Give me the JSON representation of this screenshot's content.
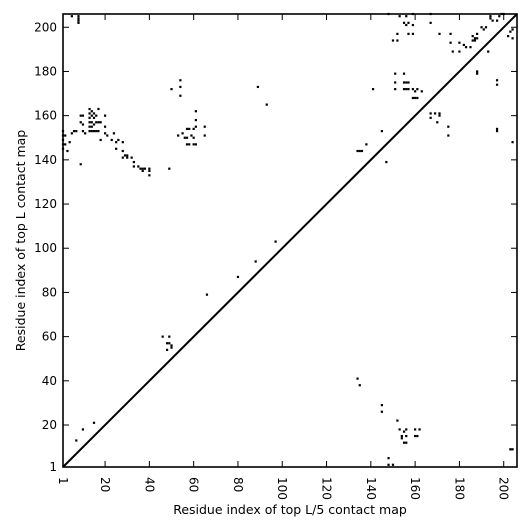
{
  "chart_data": {
    "type": "scatter",
    "xlabel": "Residue index of top L/5 contact map",
    "ylabel": "Residue index of top L contact map",
    "xlim": [
      1,
      206
    ],
    "ylim": [
      1,
      206
    ],
    "xticks": [
      1,
      20,
      40,
      60,
      80,
      100,
      120,
      140,
      160,
      180,
      200
    ],
    "yticks": [
      1,
      20,
      40,
      60,
      80,
      100,
      120,
      140,
      160,
      180,
      200
    ],
    "grid": false,
    "diagonal": [
      [
        1,
        1
      ],
      [
        206,
        206
      ]
    ],
    "upper_contacts": [
      [
        5,
        205
      ],
      [
        8,
        205
      ],
      [
        8,
        204
      ],
      [
        8,
        203
      ],
      [
        8,
        202
      ],
      [
        1,
        153
      ],
      [
        1,
        151
      ],
      [
        1,
        149
      ],
      [
        1,
        147
      ],
      [
        1,
        145
      ],
      [
        2,
        151
      ],
      [
        2,
        147
      ],
      [
        3,
        144
      ],
      [
        4,
        148
      ],
      [
        5,
        152
      ],
      [
        6,
        153
      ],
      [
        7,
        153
      ],
      [
        9,
        160
      ],
      [
        9,
        157
      ],
      [
        10,
        160
      ],
      [
        10,
        156
      ],
      [
        10,
        153
      ],
      [
        11,
        152
      ],
      [
        13,
        163
      ],
      [
        13,
        161
      ],
      [
        13,
        159
      ],
      [
        13,
        157
      ],
      [
        13,
        155
      ],
      [
        13,
        153
      ],
      [
        14,
        162
      ],
      [
        14,
        160
      ],
      [
        14,
        157
      ],
      [
        14,
        155
      ],
      [
        14,
        153
      ],
      [
        15,
        161
      ],
      [
        15,
        159
      ],
      [
        15,
        156
      ],
      [
        15,
        153
      ],
      [
        16,
        160
      ],
      [
        16,
        157
      ],
      [
        16,
        153
      ],
      [
        17,
        163
      ],
      [
        17,
        157
      ],
      [
        17,
        153
      ],
      [
        18,
        157
      ],
      [
        18,
        149
      ],
      [
        20,
        160
      ],
      [
        20,
        155
      ],
      [
        20,
        152
      ],
      [
        21,
        151
      ],
      [
        23,
        149
      ],
      [
        24,
        152
      ],
      [
        25,
        148
      ],
      [
        25,
        145
      ],
      [
        26,
        149
      ],
      [
        28,
        148
      ],
      [
        28,
        144
      ],
      [
        28,
        141
      ],
      [
        29,
        142
      ],
      [
        30,
        142
      ],
      [
        30,
        141
      ],
      [
        32,
        141
      ],
      [
        33,
        139
      ],
      [
        33,
        137
      ],
      [
        35,
        137
      ],
      [
        36,
        136
      ],
      [
        37,
        136
      ],
      [
        37,
        135
      ],
      [
        38,
        136
      ],
      [
        40,
        136
      ],
      [
        40,
        135
      ],
      [
        40,
        133
      ],
      [
        9,
        138
      ],
      [
        49,
        136
      ],
      [
        46,
        60
      ],
      [
        48,
        57
      ],
      [
        49,
        60
      ],
      [
        49,
        57
      ],
      [
        50,
        56
      ],
      [
        50,
        55
      ],
      [
        48,
        54
      ],
      [
        50,
        172
      ],
      [
        54,
        176
      ],
      [
        54,
        173
      ],
      [
        54,
        169
      ],
      [
        53,
        151
      ],
      [
        55,
        152
      ],
      [
        56,
        150
      ],
      [
        57,
        154
      ],
      [
        57,
        150
      ],
      [
        58,
        154
      ],
      [
        57,
        147
      ],
      [
        58,
        147
      ],
      [
        59,
        151
      ],
      [
        60,
        147
      ],
      [
        60,
        150
      ],
      [
        60,
        154
      ],
      [
        61,
        162
      ],
      [
        61,
        158
      ],
      [
        61,
        155
      ],
      [
        61,
        147
      ],
      [
        65,
        155
      ],
      [
        65,
        151
      ],
      [
        66,
        79
      ],
      [
        80,
        87
      ],
      [
        88,
        94
      ],
      [
        89,
        173
      ],
      [
        93,
        165
      ],
      [
        97,
        103
      ],
      [
        134,
        144
      ],
      [
        135,
        144
      ],
      [
        136,
        144
      ],
      [
        138,
        147
      ],
      [
        141,
        172
      ],
      [
        145,
        153
      ],
      [
        147,
        139
      ],
      [
        148,
        206
      ],
      [
        150,
        194
      ],
      [
        151,
        179
      ],
      [
        151,
        175
      ],
      [
        151,
        172
      ],
      [
        152,
        194
      ],
      [
        152,
        197
      ],
      [
        153,
        205
      ],
      [
        155,
        179
      ],
      [
        155,
        175
      ],
      [
        155,
        172
      ],
      [
        155,
        202
      ],
      [
        156,
        205
      ],
      [
        156,
        175
      ],
      [
        156,
        172
      ],
      [
        156,
        201
      ],
      [
        157,
        172
      ],
      [
        157,
        197
      ],
      [
        157,
        175
      ],
      [
        157,
        202
      ],
      [
        159,
        206
      ],
      [
        159,
        201
      ],
      [
        159,
        197
      ],
      [
        159,
        172
      ],
      [
        159,
        168
      ],
      [
        160,
        168
      ],
      [
        160,
        171
      ],
      [
        161,
        172
      ],
      [
        161,
        168
      ],
      [
        163,
        171
      ],
      [
        167,
        206
      ],
      [
        167,
        202
      ],
      [
        167,
        161
      ],
      [
        167,
        159
      ],
      [
        169,
        161
      ],
      [
        170,
        157
      ],
      [
        171,
        197
      ],
      [
        171,
        161
      ],
      [
        171,
        160
      ],
      [
        175,
        155
      ],
      [
        175,
        151
      ],
      [
        176,
        197
      ],
      [
        176,
        193
      ],
      [
        177,
        189
      ],
      [
        180,
        193
      ],
      [
        180,
        189
      ],
      [
        182,
        192
      ],
      [
        183,
        191
      ],
      [
        185,
        191
      ],
      [
        186,
        196
      ],
      [
        186,
        194
      ],
      [
        187,
        194
      ],
      [
        187,
        195
      ],
      [
        188,
        197
      ],
      [
        188,
        195
      ],
      [
        188,
        180
      ],
      [
        188,
        179
      ],
      [
        190,
        200
      ],
      [
        191,
        199
      ],
      [
        192,
        200
      ],
      [
        193,
        189
      ],
      [
        194,
        205
      ],
      [
        194,
        204
      ],
      [
        195,
        203
      ],
      [
        197,
        203
      ],
      [
        197,
        154
      ],
      [
        197,
        153
      ],
      [
        197,
        174
      ],
      [
        197,
        176
      ],
      [
        198,
        205
      ],
      [
        199,
        206
      ],
      [
        200,
        206
      ],
      [
        202,
        196
      ],
      [
        203,
        198
      ],
      [
        204,
        199
      ],
      [
        204,
        195
      ],
      [
        204,
        148
      ]
    ],
    "lower_contacts": [
      [
        7,
        13
      ],
      [
        10,
        18
      ],
      [
        15,
        21
      ],
      [
        134,
        41
      ],
      [
        135,
        38
      ],
      [
        145,
        29
      ],
      [
        145,
        26
      ],
      [
        148,
        5
      ],
      [
        148,
        2
      ],
      [
        150,
        2
      ],
      [
        152,
        22
      ],
      [
        153,
        18
      ],
      [
        154,
        15
      ],
      [
        154,
        14
      ],
      [
        155,
        17
      ],
      [
        155,
        12
      ],
      [
        156,
        18
      ],
      [
        156,
        15
      ],
      [
        156,
        12
      ],
      [
        160,
        18
      ],
      [
        160,
        15
      ],
      [
        161,
        15
      ],
      [
        162,
        18
      ],
      [
        204,
        9
      ],
      [
        203,
        9
      ]
    ]
  }
}
